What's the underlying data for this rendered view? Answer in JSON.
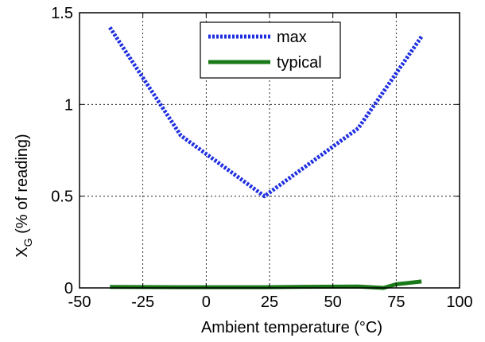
{
  "chart_data": {
    "type": "line",
    "title": "",
    "xlabel": "Ambient temperature  (°C)",
    "ylabel_main": "X",
    "ylabel_sub": "G",
    "ylabel_rest": "  (% of reading)",
    "xlim": [
      -50,
      100
    ],
    "ylim": [
      0,
      1.5
    ],
    "xticks": [
      -50,
      -25,
      0,
      25,
      50,
      75,
      100
    ],
    "yticks": [
      0,
      0.5,
      1,
      1.5
    ],
    "xtick_labels": [
      "-50",
      "-25",
      "0",
      "25",
      "50",
      "75",
      "100"
    ],
    "ytick_labels": [
      "0",
      "0.5",
      "1",
      "1.5"
    ],
    "grid": true,
    "legend_position": "top-center",
    "series": [
      {
        "name": "max",
        "color": "#1f2fe0",
        "style": "dotted",
        "x": [
          -38,
          -10,
          23,
          60,
          85
        ],
        "y": [
          1.42,
          0.83,
          0.5,
          0.87,
          1.37
        ]
      },
      {
        "name": "typical",
        "color": "#1a7a1a",
        "style": "solid",
        "x": [
          -38,
          -10,
          23,
          40,
          60,
          70,
          75,
          85
        ],
        "y": [
          0.005,
          0.004,
          0.004,
          0.006,
          0.008,
          0.0,
          0.02,
          0.035
        ]
      }
    ]
  }
}
